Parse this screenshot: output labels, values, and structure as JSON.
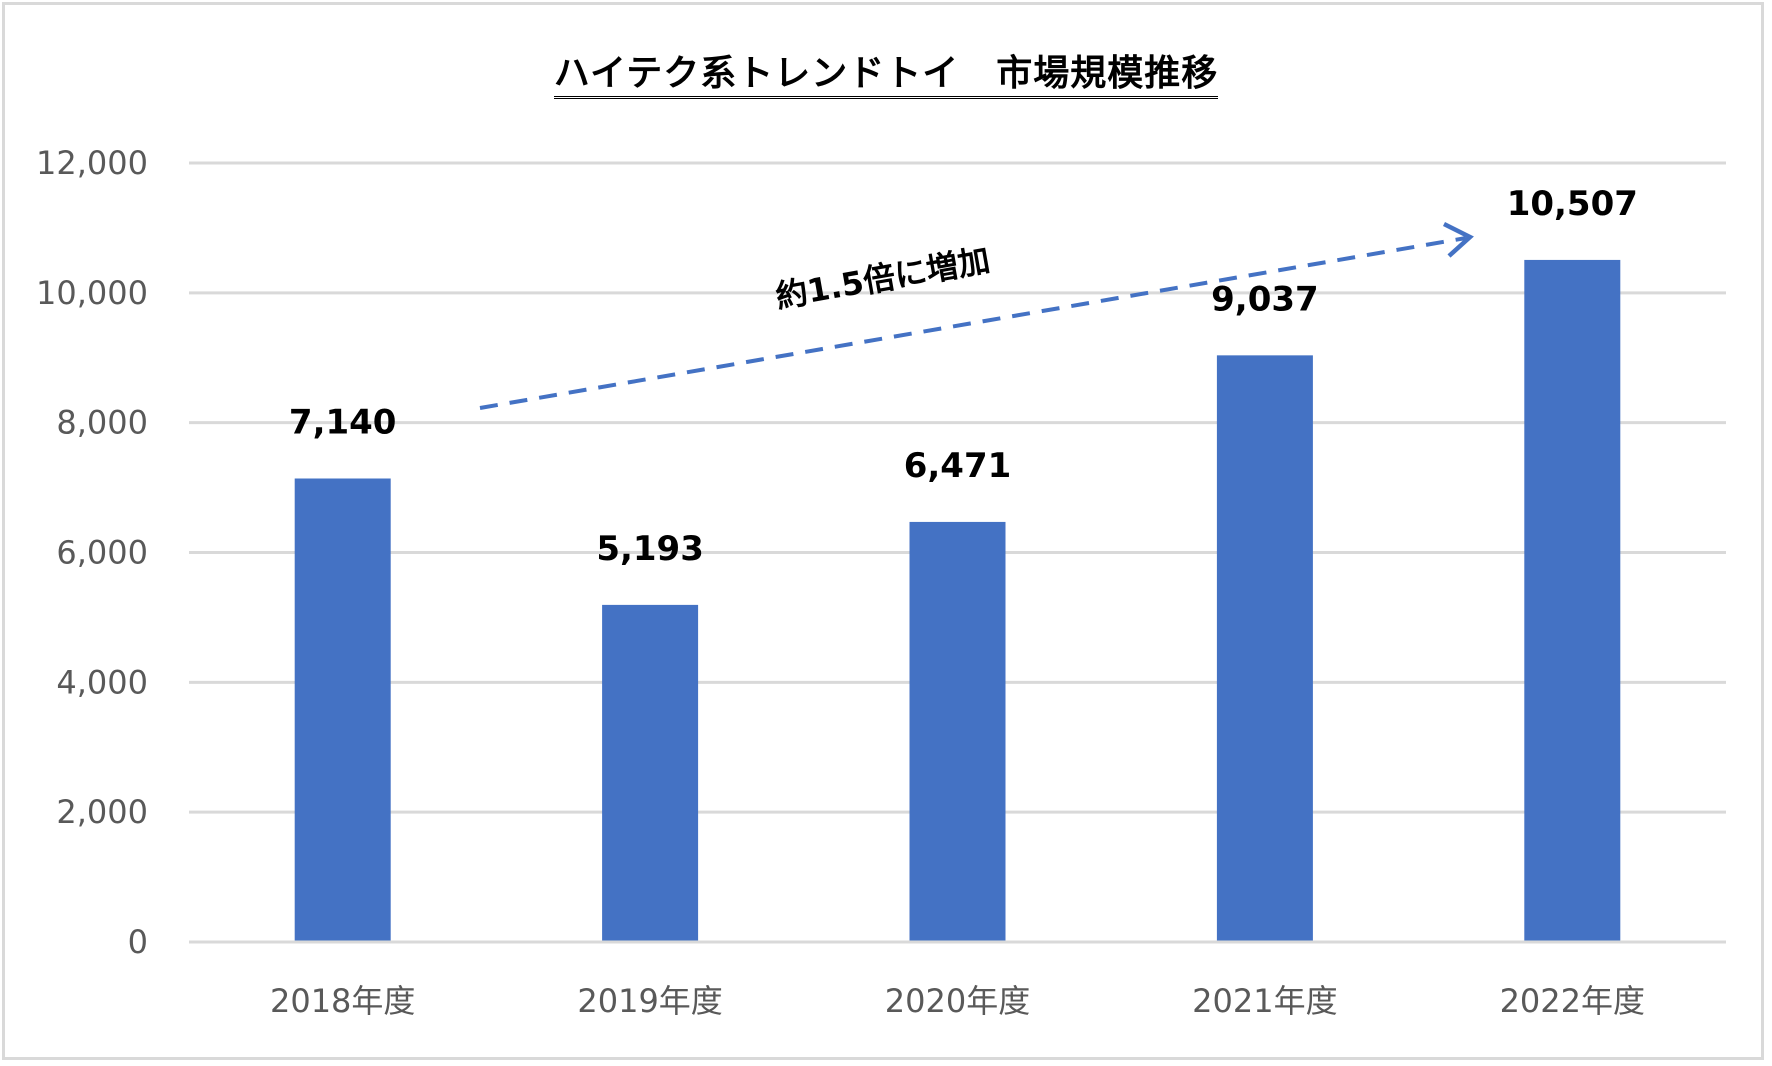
{
  "chart_data": {
    "type": "bar",
    "title": "ハイテク系トレンドトイ　市場規模推移",
    "categories": [
      "2018年度",
      "2019年度",
      "2020年度",
      "2021年度",
      "2022年度"
    ],
    "values": [
      7140,
      5193,
      6471,
      9037,
      10507
    ],
    "data_labels": [
      "7,140",
      "5,193",
      "6,471",
      "9,037",
      "10,507"
    ],
    "xlabel": "",
    "ylabel": "",
    "ylim": [
      0,
      12000
    ],
    "yticks": [
      0,
      2000,
      4000,
      6000,
      8000,
      10000,
      12000
    ],
    "ytick_labels": [
      "0",
      "2,000",
      "4,000",
      "6,000",
      "8,000",
      "10,000",
      "12,000"
    ],
    "grid": true,
    "legend": null,
    "bar_color": "#4472c4",
    "annotations": [
      {
        "text": "約1.5倍に増加",
        "type": "dashed-arrow",
        "from": "2018年度",
        "to": "2022年度",
        "color": "#4472c4"
      }
    ]
  }
}
